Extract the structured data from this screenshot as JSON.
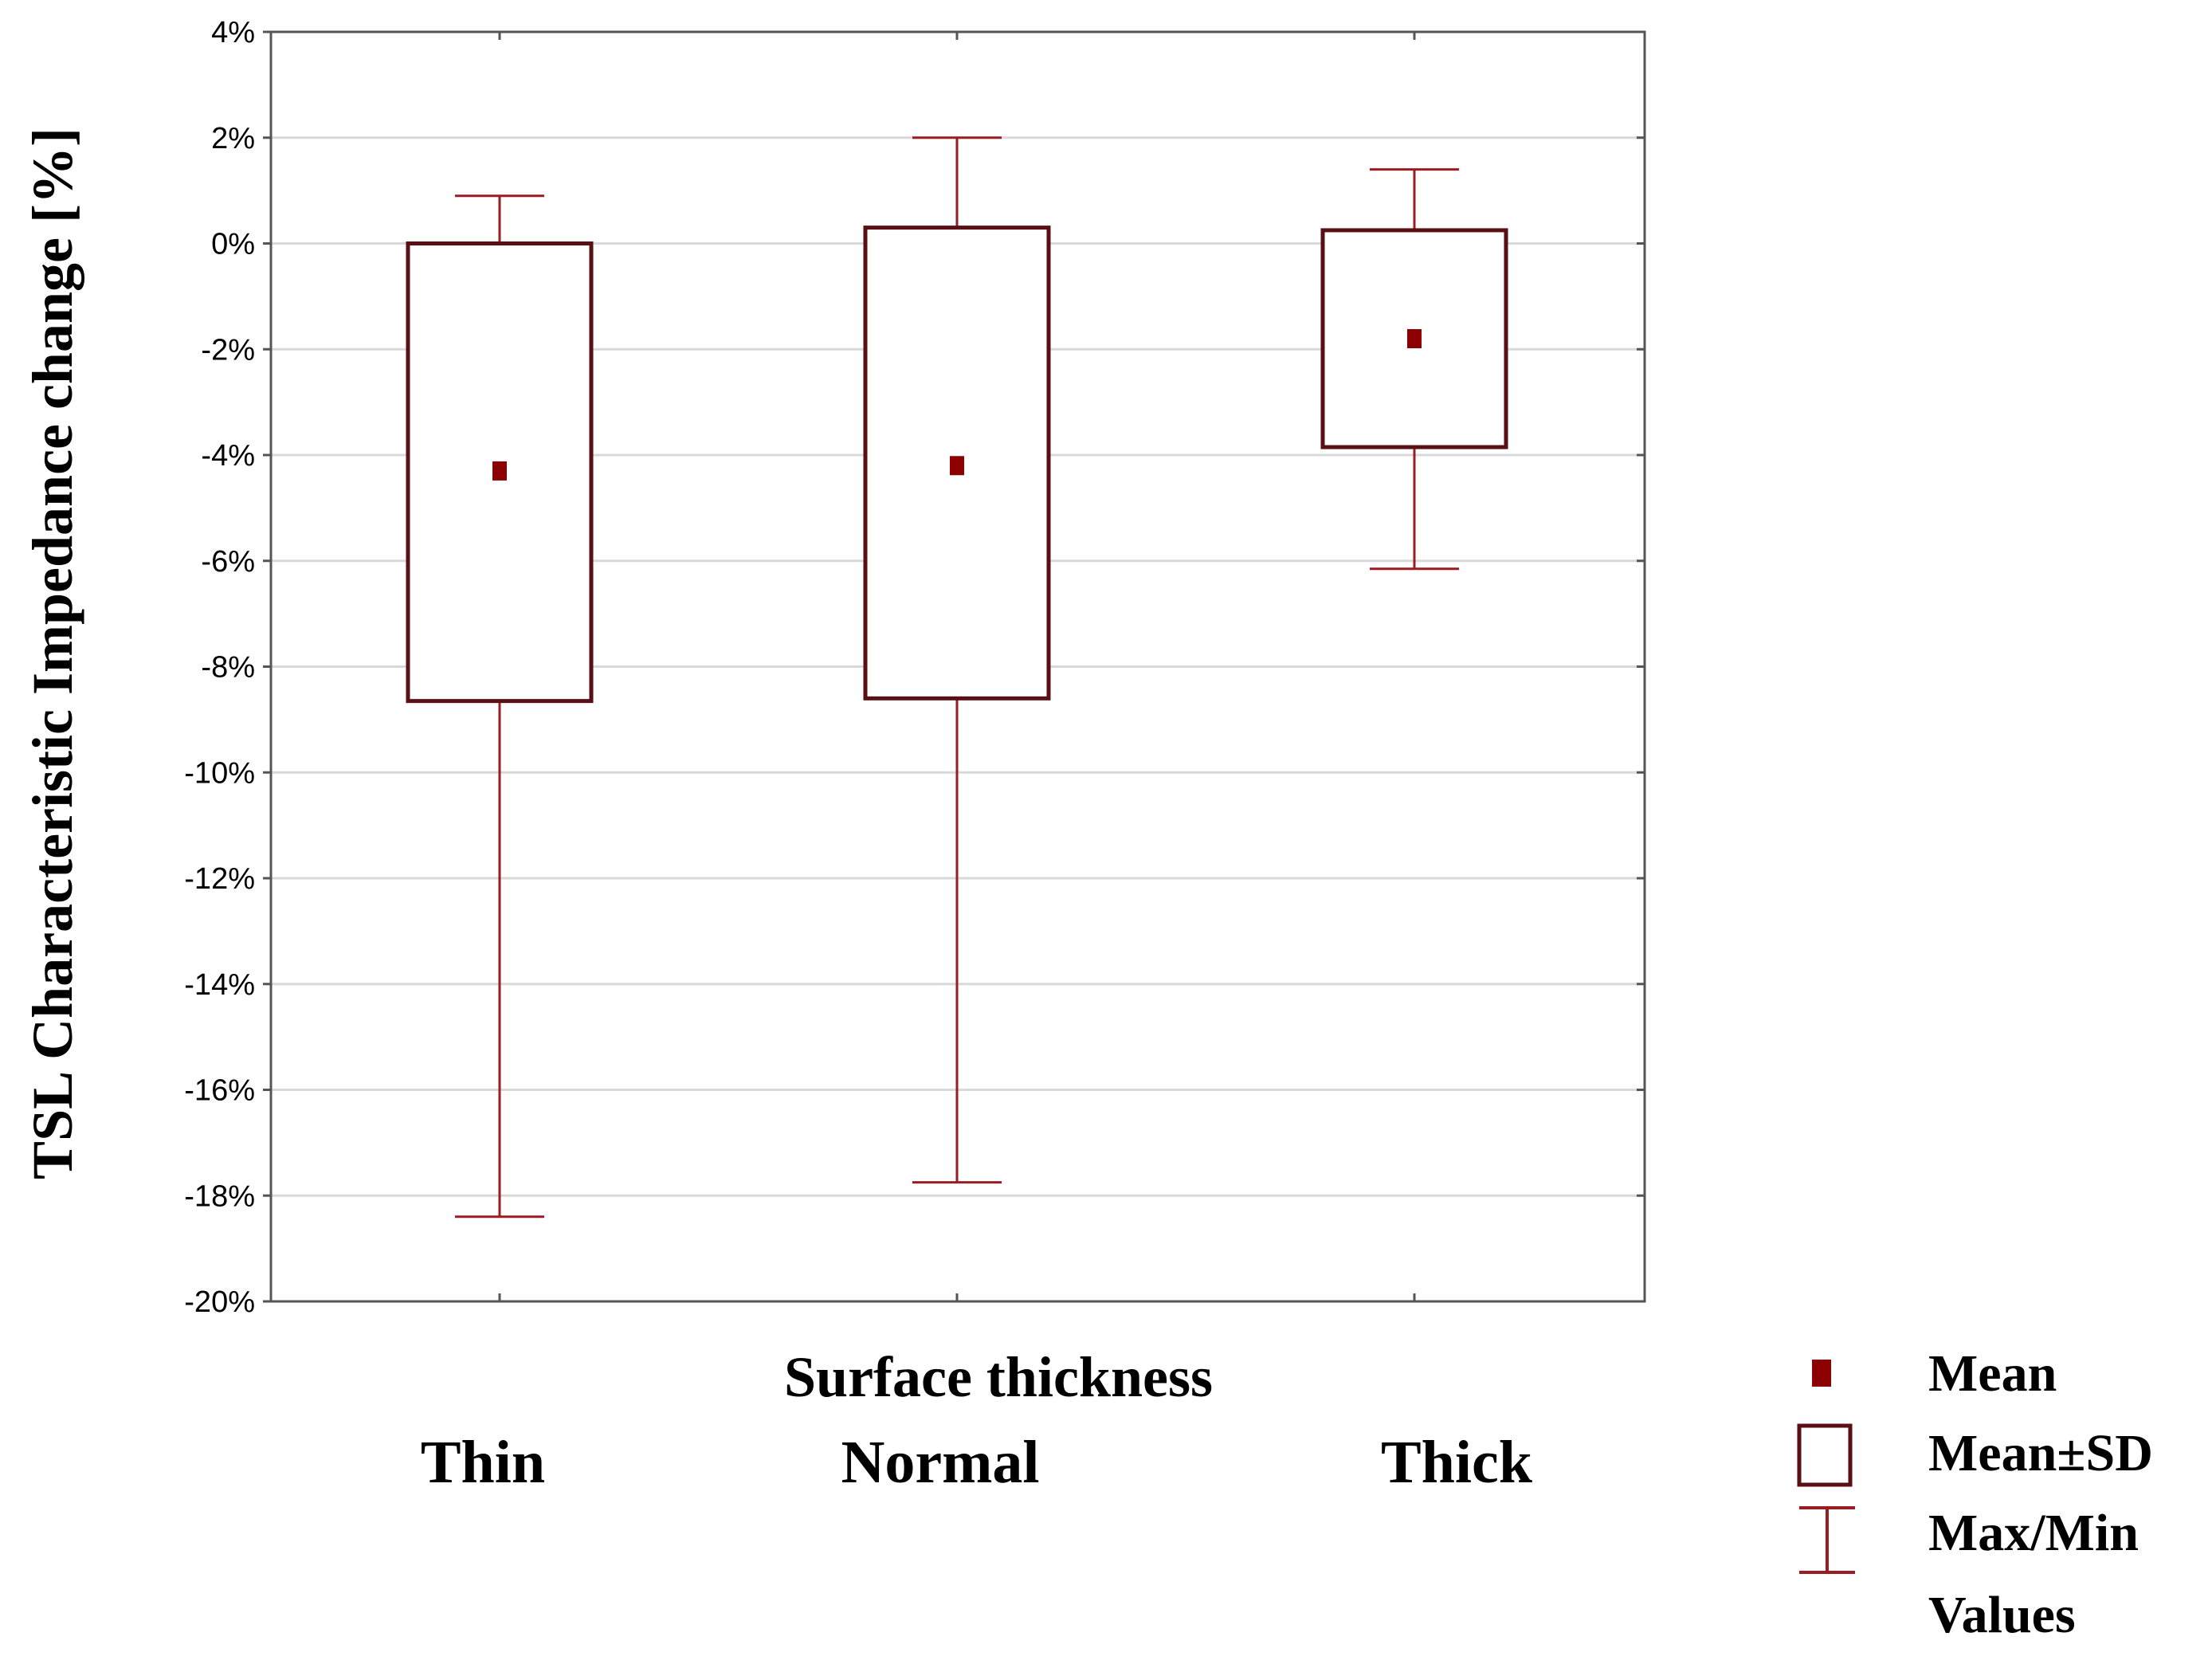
{
  "chart_data": {
    "type": "box",
    "title": "",
    "xlabel": "Surface thickness",
    "ylabel": "TSL Characteristic Impedance  change [%]",
    "ylim": [
      -20,
      4
    ],
    "yticks": [
      4,
      2,
      0,
      -2,
      -4,
      -6,
      -8,
      -10,
      -12,
      -14,
      -16,
      -18,
      -20
    ],
    "ytick_labels": [
      "4%",
      "2%",
      "0%",
      "-2%",
      "-4%",
      "-6%",
      "-8%",
      "-10%",
      "-12%",
      "-14%",
      "-16%",
      "-18%",
      "-20%"
    ],
    "categories": [
      "Thin",
      "Normal",
      "Thick"
    ],
    "series": [
      {
        "category": "Thin",
        "mean": -4.3,
        "mean_minus_sd": -8.65,
        "mean_plus_sd": 0.0,
        "min": -18.4,
        "max": 0.9
      },
      {
        "category": "Normal",
        "mean": -4.2,
        "mean_minus_sd": -8.6,
        "mean_plus_sd": 0.3,
        "min": -17.75,
        "max": 2.0
      },
      {
        "category": "Thick",
        "mean": -1.8,
        "mean_minus_sd": -3.85,
        "mean_plus_sd": 0.25,
        "min": -6.15,
        "max": 1.4
      }
    ],
    "grid": true,
    "legend_position": "bottom-right",
    "legend": {
      "mean": "Mean",
      "box": "Mean±SD",
      "whisker_line1": "Max/Min",
      "whisker_line2": "Values"
    },
    "colors": {
      "box_border": "#5a0f14",
      "whisker": "#9b1c22",
      "mean_marker": "#8b0000",
      "grid": "#d9d9d9",
      "axis": "#555555"
    }
  }
}
